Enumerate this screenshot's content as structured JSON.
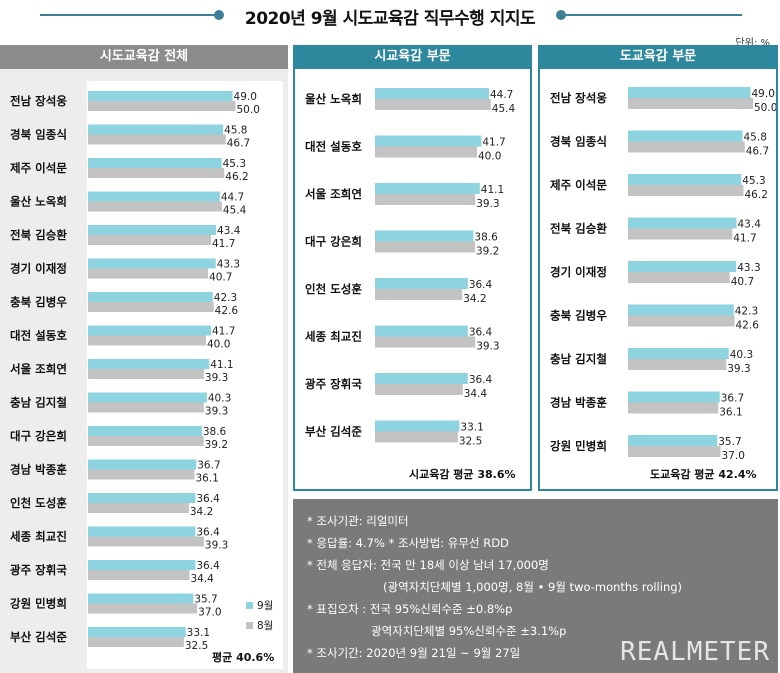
{
  "title": "2020년 9월 시도교육감 직무수행 지지도",
  "unit_label": "단위: %",
  "legend": {
    "sep": "9월",
    "aug": "8월"
  },
  "colors": {
    "sep": "#8ed3e0",
    "aug": "#c3c3c3",
    "teal": "#2e889d",
    "notes_bg": "#7a7a7a"
  },
  "chart_data": [
    {
      "type": "bar",
      "title": "시도교육감 전체",
      "categories": [
        "전남 장석웅",
        "경북 임종식",
        "제주 이석문",
        "울산 노옥희",
        "전북 김승환",
        "경기 이재정",
        "충북 김병우",
        "대전 설동호",
        "서울 조희연",
        "충남 김지철",
        "대구 강은희",
        "경남 박종훈",
        "인천 도성훈",
        "세종 최교진",
        "광주 장휘국",
        "강원 민병희",
        "부산 김석준"
      ],
      "series": [
        {
          "name": "9월",
          "values": [
            49.0,
            45.8,
            45.3,
            44.7,
            43.4,
            43.3,
            42.3,
            41.7,
            41.1,
            40.3,
            38.6,
            36.7,
            36.4,
            36.4,
            36.4,
            35.7,
            33.1
          ]
        },
        {
          "name": "8월",
          "values": [
            50.0,
            46.7,
            46.2,
            45.4,
            41.7,
            40.7,
            42.6,
            40.0,
            39.3,
            39.3,
            39.2,
            36.1,
            34.2,
            39.3,
            34.4,
            37.0,
            32.5
          ]
        }
      ],
      "average_label": "평균 40.6%"
    },
    {
      "type": "bar",
      "title": "시교육감 부문",
      "categories": [
        "울산 노옥희",
        "대전 설동호",
        "서울 조희연",
        "대구 강은희",
        "인천 도성훈",
        "세종 최교진",
        "광주 장휘국",
        "부산 김석준"
      ],
      "series": [
        {
          "name": "9월",
          "values": [
            44.7,
            41.7,
            41.1,
            38.6,
            36.4,
            36.4,
            36.4,
            33.1
          ]
        },
        {
          "name": "8월",
          "values": [
            45.4,
            40.0,
            39.3,
            39.2,
            34.2,
            39.3,
            34.4,
            32.5
          ]
        }
      ],
      "average_label": "시교육감 평균 38.6%"
    },
    {
      "type": "bar",
      "title": "도교육감 부문",
      "categories": [
        "전남 장석웅",
        "경북 임종식",
        "제주 이석문",
        "전북 김승환",
        "경기 이재정",
        "충북 김병우",
        "충남 김지철",
        "경남 박종훈",
        "강원 민병희"
      ],
      "series": [
        {
          "name": "9월",
          "values": [
            49.0,
            45.8,
            45.3,
            43.4,
            43.3,
            42.3,
            40.3,
            36.7,
            35.7
          ]
        },
        {
          "name": "8월",
          "values": [
            50.0,
            46.7,
            46.2,
            41.7,
            40.7,
            42.6,
            39.3,
            36.1,
            37.0
          ]
        }
      ],
      "average_label": "도교육감 평균 42.4%"
    }
  ],
  "notes": {
    "l1": "* 조사기관: 리얼미터",
    "l2": "* 응답률: 4.7% * 조사방법: 유무선 RDD",
    "l3": "* 전체 응답자: 전국 만 18세 이상 남녀 17,000명",
    "l4": "(광역자치단체별 1,000명, 8월 • 9월 two-months rolling)",
    "l5": "* 표집오차 : 전국 95%신뢰수준 ±0.8%p",
    "l6": "광역자치단체별 95%신뢰수준 ±3.1%p",
    "l7": "* 조사기간: 2020년 9월 21일 ~ 9월 27일"
  },
  "brand": "REALMETER"
}
